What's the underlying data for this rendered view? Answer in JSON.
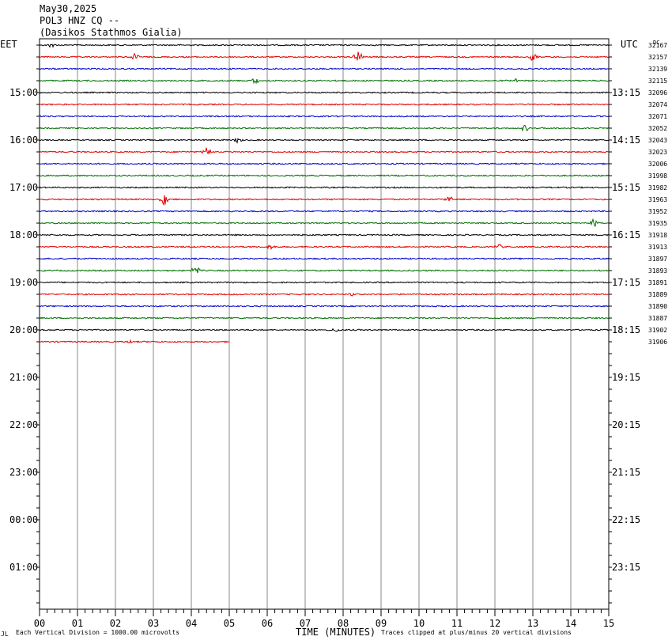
{
  "header": {
    "date": "May30,2025",
    "station": "POL3 HNZ CQ --",
    "location": "(Dasikos Stathmos Gialia)"
  },
  "left_tz": "EET",
  "right_tz": "UTC",
  "dc_label": "DC",
  "footer": {
    "scale": "Each Vertical Division = 1000.00 microvolts",
    "clip": "Traces clipped at plus/minus 20 vertical divisions",
    "corner": "JL"
  },
  "colors": {
    "cycle": [
      "#000000",
      "#e00000",
      "#0000cc",
      "#007000"
    ],
    "grid": "#888888"
  },
  "chart_data": {
    "type": "line",
    "xlabel": "TIME (MINUTES)",
    "xlim": [
      0,
      15
    ],
    "x_ticks": [
      "00",
      "01",
      "02",
      "03",
      "04",
      "05",
      "06",
      "07",
      "08",
      "09",
      "10",
      "11",
      "12",
      "13",
      "14",
      "15"
    ],
    "hour_rows": [
      {
        "left": "15:00",
        "right": "13:15"
      },
      {
        "left": "16:00",
        "right": "14:15"
      },
      {
        "left": "17:00",
        "right": "15:15"
      },
      {
        "left": "18:00",
        "right": "16:15"
      },
      {
        "left": "19:00",
        "right": "17:15"
      },
      {
        "left": "20:00",
        "right": "18:15"
      },
      {
        "left": "21:00",
        "right": "19:15"
      },
      {
        "left": "22:00",
        "right": "20:15"
      },
      {
        "left": "23:00",
        "right": "21:15"
      },
      {
        "left": "00:00",
        "right": "22:15"
      },
      {
        "left": "01:00",
        "right": "23:15"
      }
    ],
    "series_dc": [
      "32167",
      "32157",
      "32139",
      "32115",
      "32096",
      "32074",
      "32071",
      "32052",
      "32043",
      "32023",
      "32006",
      "31998",
      "31982",
      "31963",
      "31952",
      "31935",
      "31918",
      "31913",
      "31897",
      "31893",
      "31891",
      "31889",
      "31890",
      "31887",
      "31902",
      "31906"
    ],
    "last_trace_end_minute": 5,
    "events": [
      {
        "trace": 0,
        "minute": 0.3,
        "amp": 3
      },
      {
        "trace": 1,
        "minute": 2.5,
        "amp": 4
      },
      {
        "trace": 1,
        "minute": 8.4,
        "amp": 7
      },
      {
        "trace": 1,
        "minute": 13.0,
        "amp": 7
      },
      {
        "trace": 3,
        "minute": 5.7,
        "amp": 4
      },
      {
        "trace": 3,
        "minute": 12.6,
        "amp": 3
      },
      {
        "trace": 7,
        "minute": 12.8,
        "amp": 4
      },
      {
        "trace": 8,
        "minute": 5.2,
        "amp": 4
      },
      {
        "trace": 9,
        "minute": 4.4,
        "amp": 5
      },
      {
        "trace": 13,
        "minute": 3.3,
        "amp": 9
      },
      {
        "trace": 13,
        "minute": 10.8,
        "amp": 4
      },
      {
        "trace": 15,
        "minute": 14.6,
        "amp": 5
      },
      {
        "trace": 17,
        "minute": 6.1,
        "amp": 3
      },
      {
        "trace": 17,
        "minute": 12.1,
        "amp": 3
      },
      {
        "trace": 19,
        "minute": 4.1,
        "amp": 6
      },
      {
        "trace": 21,
        "minute": 8.2,
        "amp": 3
      },
      {
        "trace": 24,
        "minute": 7.8,
        "amp": 3
      },
      {
        "trace": 25,
        "minute": 2.4,
        "amp": 3
      }
    ]
  }
}
